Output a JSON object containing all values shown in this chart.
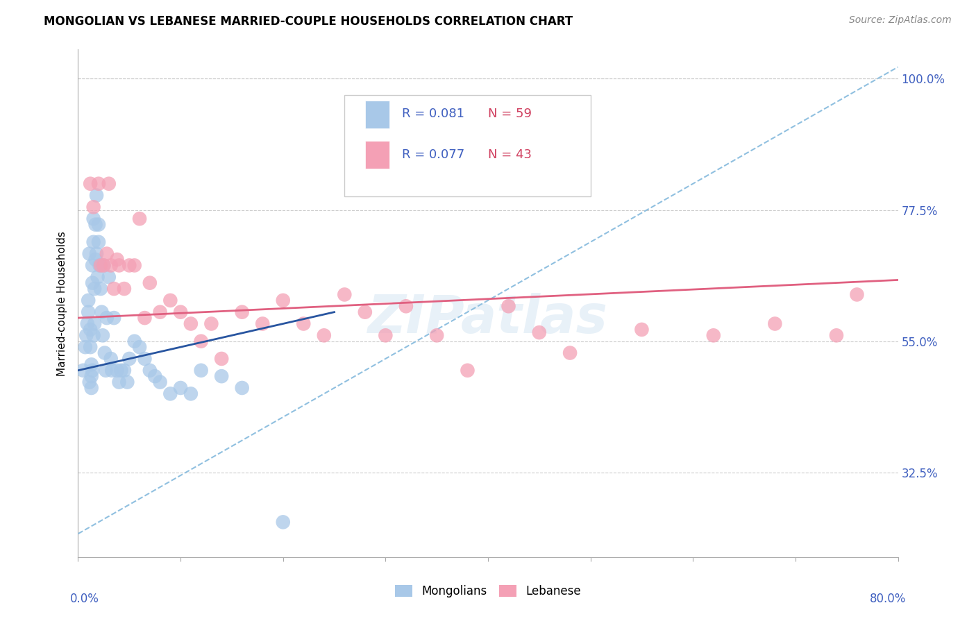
{
  "title": "MONGOLIAN VS LEBANESE MARRIED-COUPLE HOUSEHOLDS CORRELATION CHART",
  "source": "Source: ZipAtlas.com",
  "ylabel": "Married-couple Households",
  "ytick_labels": [
    "100.0%",
    "77.5%",
    "55.0%",
    "32.5%"
  ],
  "ytick_values": [
    1.0,
    0.775,
    0.55,
    0.325
  ],
  "xlim": [
    0.0,
    0.8
  ],
  "ylim": [
    0.18,
    1.05
  ],
  "blue_color": "#a8c8e8",
  "pink_color": "#f4a0b5",
  "blue_line_color": "#2855a0",
  "pink_line_color": "#e06080",
  "dashed_line_color": "#90c0e0",
  "legend_r_color": "#4060c0",
  "legend_n_color": "#d04060",
  "watermark": "ZIPatlas",
  "mongo_x": [
    0.005,
    0.007,
    0.008,
    0.009,
    0.01,
    0.01,
    0.011,
    0.011,
    0.012,
    0.012,
    0.013,
    0.013,
    0.013,
    0.014,
    0.014,
    0.014,
    0.015,
    0.015,
    0.015,
    0.016,
    0.016,
    0.017,
    0.017,
    0.018,
    0.018,
    0.019,
    0.02,
    0.02,
    0.021,
    0.022,
    0.023,
    0.024,
    0.025,
    0.026,
    0.027,
    0.028,
    0.03,
    0.032,
    0.033,
    0.035,
    0.038,
    0.04,
    0.042,
    0.045,
    0.048,
    0.05,
    0.055,
    0.06,
    0.065,
    0.07,
    0.075,
    0.08,
    0.09,
    0.1,
    0.11,
    0.12,
    0.14,
    0.16,
    0.2
  ],
  "mongo_y": [
    0.5,
    0.54,
    0.56,
    0.58,
    0.6,
    0.62,
    0.7,
    0.48,
    0.54,
    0.57,
    0.51,
    0.49,
    0.47,
    0.68,
    0.65,
    0.5,
    0.76,
    0.72,
    0.56,
    0.64,
    0.58,
    0.75,
    0.69,
    0.8,
    0.7,
    0.66,
    0.75,
    0.72,
    0.68,
    0.64,
    0.6,
    0.56,
    0.68,
    0.53,
    0.5,
    0.59,
    0.66,
    0.52,
    0.5,
    0.59,
    0.5,
    0.48,
    0.5,
    0.5,
    0.48,
    0.52,
    0.55,
    0.54,
    0.52,
    0.5,
    0.49,
    0.48,
    0.46,
    0.47,
    0.46,
    0.5,
    0.49,
    0.47,
    0.24
  ],
  "leb_x": [
    0.012,
    0.015,
    0.02,
    0.022,
    0.025,
    0.028,
    0.03,
    0.032,
    0.035,
    0.038,
    0.04,
    0.045,
    0.05,
    0.055,
    0.06,
    0.065,
    0.07,
    0.08,
    0.09,
    0.1,
    0.11,
    0.12,
    0.13,
    0.14,
    0.16,
    0.18,
    0.2,
    0.22,
    0.24,
    0.26,
    0.28,
    0.3,
    0.32,
    0.35,
    0.38,
    0.42,
    0.45,
    0.48,
    0.55,
    0.62,
    0.68,
    0.74,
    0.76
  ],
  "leb_y": [
    0.82,
    0.78,
    0.82,
    0.68,
    0.68,
    0.7,
    0.82,
    0.68,
    0.64,
    0.69,
    0.68,
    0.64,
    0.68,
    0.68,
    0.76,
    0.59,
    0.65,
    0.6,
    0.62,
    0.6,
    0.58,
    0.55,
    0.58,
    0.52,
    0.6,
    0.58,
    0.62,
    0.58,
    0.56,
    0.63,
    0.6,
    0.56,
    0.61,
    0.56,
    0.5,
    0.61,
    0.565,
    0.53,
    0.57,
    0.56,
    0.58,
    0.56,
    0.63
  ],
  "blue_line_x0": 0.0,
  "blue_line_y0": 0.5,
  "blue_line_x1": 0.25,
  "blue_line_y1": 0.6,
  "pink_line_x0": 0.0,
  "pink_line_y0": 0.59,
  "pink_line_x1": 0.8,
  "pink_line_y1": 0.655,
  "dash_line_x0": 0.0,
  "dash_line_y0": 0.22,
  "dash_line_x1": 0.8,
  "dash_line_y1": 1.02
}
